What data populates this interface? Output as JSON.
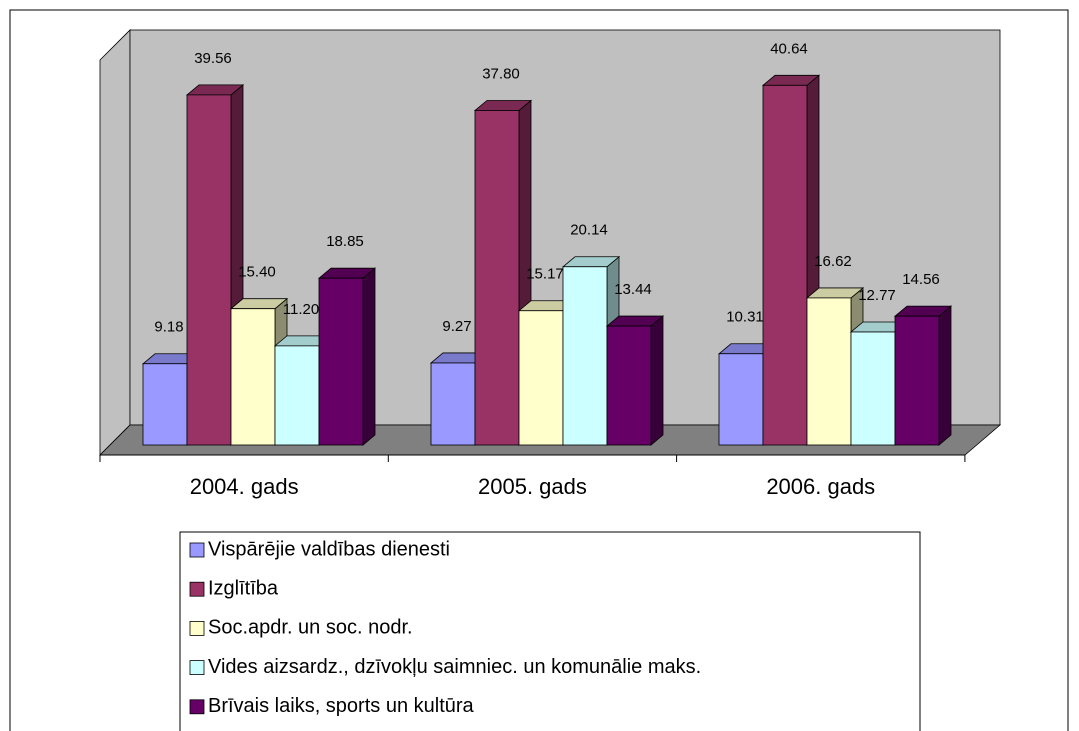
{
  "chart_data": {
    "type": "bar3d",
    "categories": [
      "2004. gads",
      "2005. gads",
      "2006. gads"
    ],
    "series": [
      {
        "name": "Vispārējie valdības dienesti",
        "color": "#9999ff",
        "values": [
          9.18,
          9.27,
          10.31
        ],
        "value_labels": [
          "9.18",
          "9.27",
          "10.31"
        ]
      },
      {
        "name": "Izglītība",
        "color": "#993366",
        "values": [
          39.56,
          37.8,
          40.64
        ],
        "value_labels": [
          "39.56",
          "37.80",
          "40.64"
        ]
      },
      {
        "name": "Soc.apdr. un soc. nodr.",
        "color": "#ffffcc",
        "values": [
          15.4,
          15.17,
          16.62
        ],
        "value_labels": [
          "15.40",
          "15.17",
          "16.62"
        ]
      },
      {
        "name": "Vides aizsardz., dzīvokļu saimniec. un komunālie maks.",
        "color": "#ccffff",
        "values": [
          11.2,
          20.14,
          12.77
        ],
        "value_labels": [
          "11.20",
          "20.14",
          "12.77"
        ]
      },
      {
        "name": "Brīvais laiks, sports un kultūra",
        "color": "#660066",
        "values": [
          18.85,
          13.44,
          14.56
        ],
        "value_labels": [
          "18.85",
          "13.44",
          "14.56"
        ]
      }
    ]
  }
}
